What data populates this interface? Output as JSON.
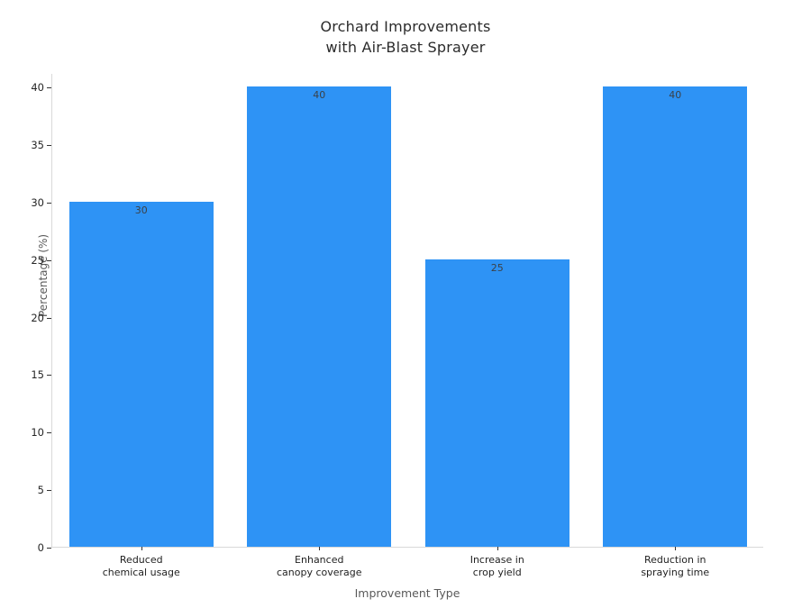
{
  "figure": {
    "title": "Orchard Improvements\nwith Air-Blast Sprayer",
    "xlabel": "Improvement Type",
    "ylabel": "Percentage (%)"
  },
  "chart_data": {
    "type": "bar",
    "title": "Orchard Improvements with Air-Blast Sprayer",
    "categories": [
      "Reduced\nchemical usage",
      "Enhanced\ncanopy coverage",
      "Increase in\ncrop yield",
      "Reduction in\nspraying time"
    ],
    "values": [
      30,
      40,
      25,
      40
    ],
    "value_labels": [
      "30",
      "40",
      "25",
      "40"
    ],
    "xlabel": "Improvement Type",
    "ylabel": "Percentage (%)",
    "ylim": [
      0,
      41.2
    ],
    "yticks": [
      0,
      5,
      10,
      15,
      20,
      25,
      30,
      35,
      40
    ],
    "grid": false,
    "legend": null,
    "bar_color": "#2e93f5",
    "spine_color": "#d9d9d9",
    "tick_color": "#333333",
    "value_label_color": "#3b4147",
    "background_color": "#ffffff"
  }
}
